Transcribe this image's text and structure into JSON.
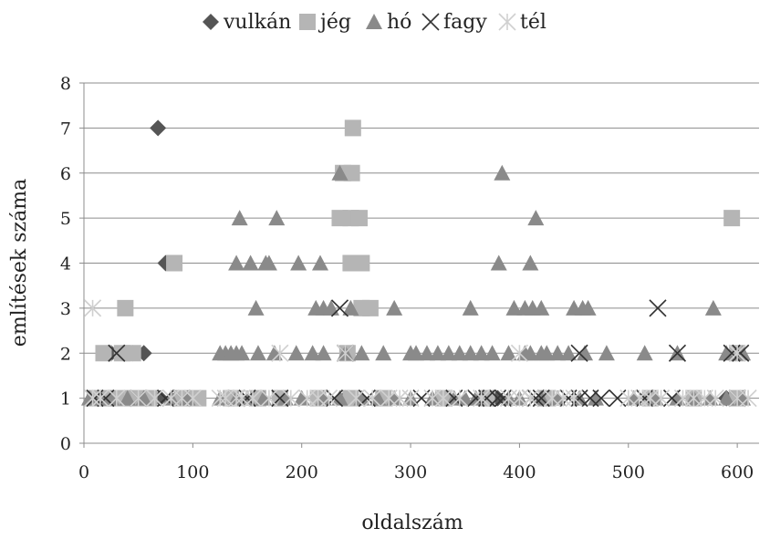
{
  "chart_data": {
    "type": "scatter",
    "title": "",
    "xlabel": "oldalszám",
    "ylabel": "említések száma",
    "xlim": [
      0,
      620
    ],
    "ylim": [
      0,
      8
    ],
    "xticks": [
      "0",
      "100",
      "200",
      "300",
      "400",
      "500",
      "600"
    ],
    "yticks": [
      "0",
      "1",
      "2",
      "3",
      "4",
      "5",
      "6",
      "7",
      "8"
    ],
    "grid": "horizontal",
    "legend_position": "top",
    "series": [
      {
        "name": "vulkán",
        "marker": "diamond",
        "color": "#555555",
        "points": [
          [
            68,
            7
          ],
          [
            75,
            4
          ],
          [
            55,
            2
          ],
          [
            25,
            2
          ],
          [
            45,
            2
          ],
          [
            10,
            1
          ],
          [
            30,
            1
          ],
          [
            50,
            1
          ],
          [
            70,
            1
          ],
          [
            85,
            1
          ],
          [
            100,
            1
          ],
          [
            240,
            1
          ],
          [
            380,
            1
          ],
          [
            590,
            1
          ]
        ]
      },
      {
        "name": "jég",
        "marker": "square",
        "color": "#b5b5b5",
        "points": [
          [
            247,
            7
          ],
          [
            238,
            6
          ],
          [
            246,
            6
          ],
          [
            595,
            5
          ],
          [
            235,
            5
          ],
          [
            245,
            5
          ],
          [
            253,
            5
          ],
          [
            83,
            4
          ],
          [
            245,
            4
          ],
          [
            255,
            4
          ],
          [
            38,
            3
          ],
          [
            263,
            3
          ],
          [
            255,
            3
          ],
          [
            18,
            2
          ],
          [
            35,
            2
          ],
          [
            45,
            2
          ],
          [
            242,
            2
          ],
          [
            600,
            2
          ],
          [
            10,
            1
          ],
          [
            20,
            1
          ],
          [
            30,
            1
          ],
          [
            45,
            1
          ],
          [
            60,
            1
          ],
          [
            90,
            1
          ],
          [
            105,
            1
          ],
          [
            135,
            1
          ],
          [
            160,
            1
          ],
          [
            180,
            1
          ],
          [
            215,
            1
          ],
          [
            245,
            1
          ],
          [
            275,
            1
          ],
          [
            330,
            1
          ],
          [
            370,
            1
          ],
          [
            425,
            1
          ],
          [
            520,
            1
          ],
          [
            560,
            1
          ],
          [
            600,
            1
          ]
        ]
      },
      {
        "name": "hó",
        "marker": "triangle",
        "color": "#8a8a8a",
        "points": [
          [
            235,
            6
          ],
          [
            384,
            6
          ],
          [
            143,
            5
          ],
          [
            177,
            5
          ],
          [
            415,
            5
          ],
          [
            140,
            4
          ],
          [
            153,
            4
          ],
          [
            167,
            4
          ],
          [
            170,
            4
          ],
          [
            197,
            4
          ],
          [
            217,
            4
          ],
          [
            381,
            4
          ],
          [
            410,
            4
          ],
          [
            158,
            3
          ],
          [
            213,
            3
          ],
          [
            220,
            3
          ],
          [
            227,
            3
          ],
          [
            245,
            3
          ],
          [
            285,
            3
          ],
          [
            355,
            3
          ],
          [
            395,
            3
          ],
          [
            405,
            3
          ],
          [
            412,
            3
          ],
          [
            420,
            3
          ],
          [
            450,
            3
          ],
          [
            458,
            3
          ],
          [
            463,
            3
          ],
          [
            578,
            3
          ],
          [
            125,
            2
          ],
          [
            130,
            2
          ],
          [
            135,
            2
          ],
          [
            140,
            2
          ],
          [
            145,
            2
          ],
          [
            160,
            2
          ],
          [
            175,
            2
          ],
          [
            195,
            2
          ],
          [
            210,
            2
          ],
          [
            220,
            2
          ],
          [
            240,
            2
          ],
          [
            255,
            2
          ],
          [
            275,
            2
          ],
          [
            300,
            2
          ],
          [
            305,
            2
          ],
          [
            315,
            2
          ],
          [
            325,
            2
          ],
          [
            335,
            2
          ],
          [
            345,
            2
          ],
          [
            355,
            2
          ],
          [
            365,
            2
          ],
          [
            375,
            2
          ],
          [
            390,
            2
          ],
          [
            405,
            2
          ],
          [
            410,
            2
          ],
          [
            420,
            2
          ],
          [
            425,
            2
          ],
          [
            435,
            2
          ],
          [
            445,
            2
          ],
          [
            460,
            2
          ],
          [
            480,
            2
          ],
          [
            515,
            2
          ],
          [
            545,
            2
          ],
          [
            590,
            2
          ],
          [
            605,
            2
          ],
          [
            5,
            1
          ],
          [
            15,
            1
          ],
          [
            25,
            1
          ],
          [
            40,
            1
          ],
          [
            55,
            1
          ],
          [
            80,
            1
          ],
          [
            95,
            1
          ],
          [
            125,
            1
          ],
          [
            140,
            1
          ],
          [
            150,
            1
          ],
          [
            165,
            1
          ],
          [
            185,
            1
          ],
          [
            200,
            1
          ],
          [
            220,
            1
          ],
          [
            235,
            1
          ],
          [
            255,
            1
          ],
          [
            270,
            1
          ],
          [
            285,
            1
          ],
          [
            300,
            1
          ],
          [
            320,
            1
          ],
          [
            340,
            1
          ],
          [
            350,
            1
          ],
          [
            360,
            1
          ],
          [
            390,
            1
          ],
          [
            400,
            1
          ],
          [
            420,
            1
          ],
          [
            435,
            1
          ],
          [
            455,
            1
          ],
          [
            470,
            1
          ],
          [
            505,
            1
          ],
          [
            525,
            1
          ],
          [
            545,
            1
          ],
          [
            560,
            1
          ],
          [
            575,
            1
          ],
          [
            590,
            1
          ],
          [
            605,
            1
          ]
        ]
      },
      {
        "name": "fagy",
        "marker": "x",
        "color": "#333333",
        "points": [
          [
            235,
            3
          ],
          [
            527,
            3
          ],
          [
            30,
            2
          ],
          [
            240,
            2
          ],
          [
            455,
            2
          ],
          [
            545,
            2
          ],
          [
            595,
            2
          ],
          [
            603,
            2
          ],
          [
            10,
            1
          ],
          [
            20,
            1
          ],
          [
            50,
            1
          ],
          [
            75,
            1
          ],
          [
            90,
            1
          ],
          [
            140,
            1
          ],
          [
            150,
            1
          ],
          [
            180,
            1
          ],
          [
            230,
            1
          ],
          [
            260,
            1
          ],
          [
            310,
            1
          ],
          [
            340,
            1
          ],
          [
            360,
            1
          ],
          [
            370,
            1
          ],
          [
            380,
            1
          ],
          [
            385,
            1
          ],
          [
            410,
            1
          ],
          [
            415,
            1
          ],
          [
            420,
            1
          ],
          [
            445,
            1
          ],
          [
            455,
            1
          ],
          [
            465,
            1
          ],
          [
            475,
            1
          ],
          [
            490,
            1
          ],
          [
            515,
            1
          ],
          [
            540,
            1
          ],
          [
            600,
            1
          ]
        ]
      },
      {
        "name": "tél",
        "marker": "asterisk",
        "color": "#d0d0d0",
        "points": [
          [
            8,
            3
          ],
          [
            180,
            2
          ],
          [
            240,
            2
          ],
          [
            400,
            2
          ],
          [
            600,
            2
          ],
          [
            8,
            1
          ],
          [
            15,
            1
          ],
          [
            30,
            1
          ],
          [
            50,
            1
          ],
          [
            65,
            1
          ],
          [
            80,
            1
          ],
          [
            90,
            1
          ],
          [
            100,
            1
          ],
          [
            125,
            1
          ],
          [
            130,
            1
          ],
          [
            140,
            1
          ],
          [
            145,
            1
          ],
          [
            155,
            1
          ],
          [
            170,
            1
          ],
          [
            190,
            1
          ],
          [
            205,
            1
          ],
          [
            215,
            1
          ],
          [
            225,
            1
          ],
          [
            250,
            1
          ],
          [
            265,
            1
          ],
          [
            280,
            1
          ],
          [
            290,
            1
          ],
          [
            300,
            1
          ],
          [
            320,
            1
          ],
          [
            330,
            1
          ],
          [
            345,
            1
          ],
          [
            365,
            1
          ],
          [
            390,
            1
          ],
          [
            400,
            1
          ],
          [
            410,
            1
          ],
          [
            430,
            1
          ],
          [
            440,
            1
          ],
          [
            450,
            1
          ],
          [
            500,
            1
          ],
          [
            510,
            1
          ],
          [
            520,
            1
          ],
          [
            530,
            1
          ],
          [
            550,
            1
          ],
          [
            560,
            1
          ],
          [
            570,
            1
          ],
          [
            580,
            1
          ],
          [
            600,
            1
          ],
          [
            610,
            1
          ]
        ]
      }
    ]
  }
}
